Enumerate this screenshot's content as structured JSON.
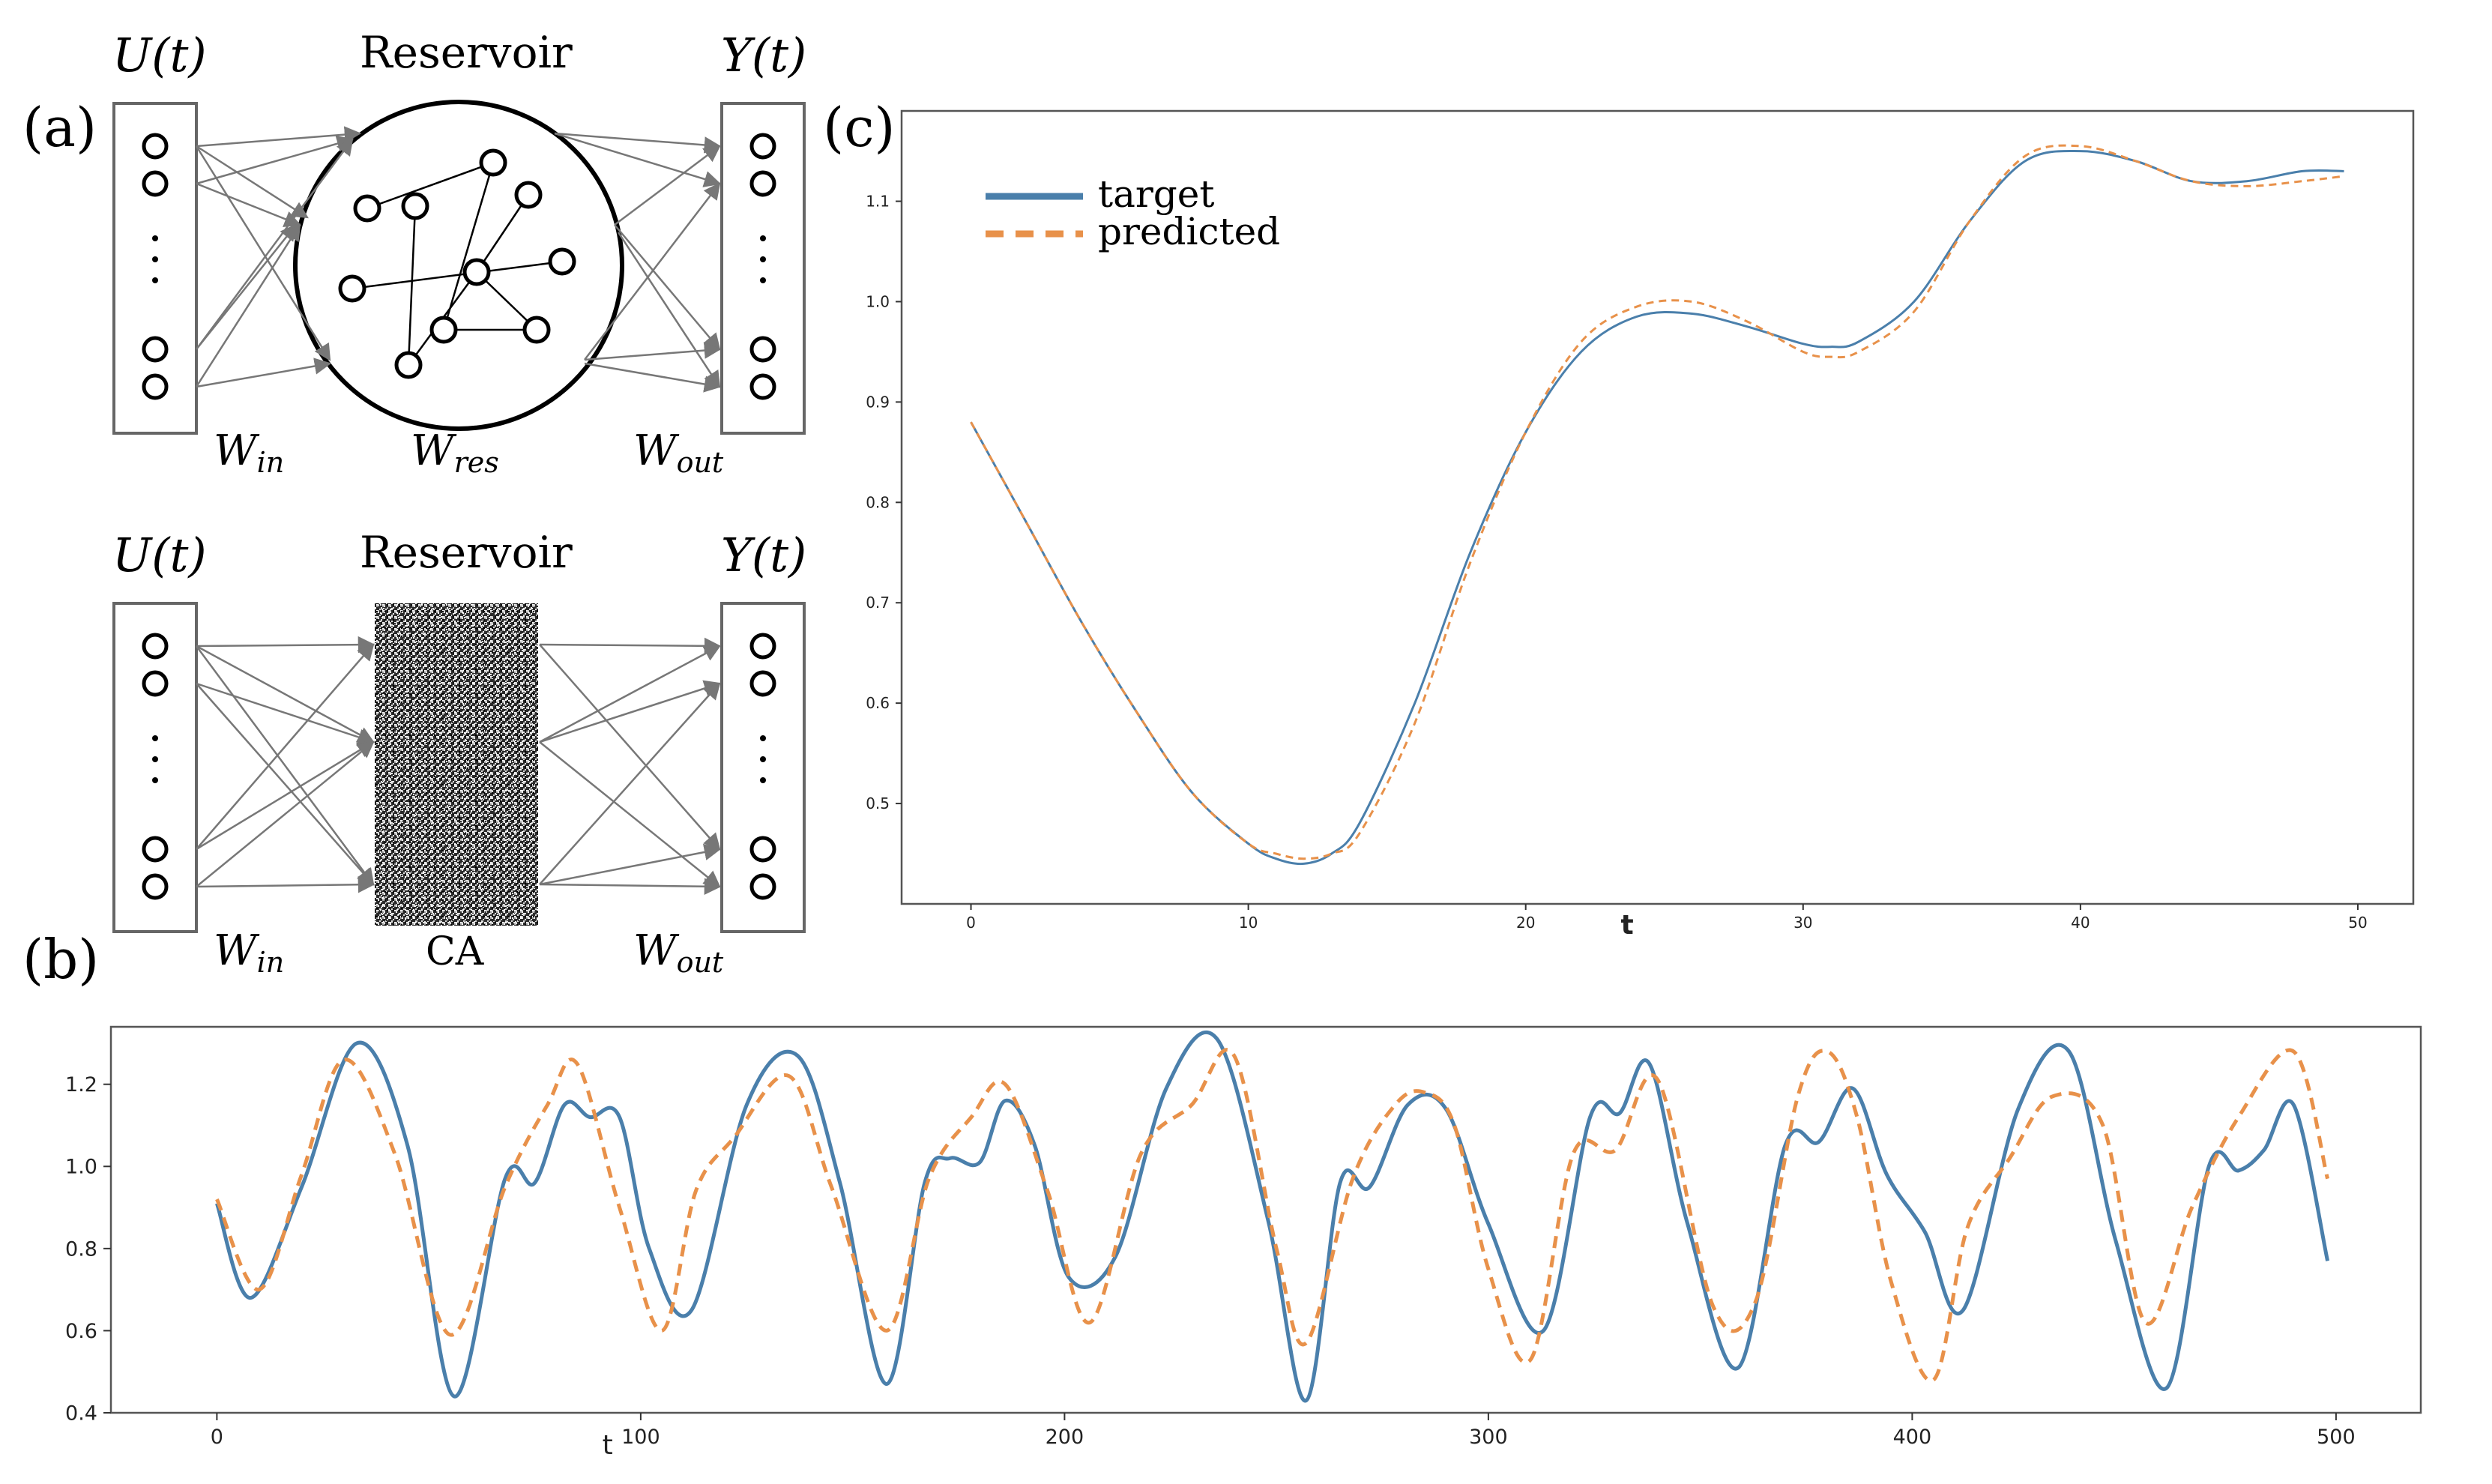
{
  "figure": {
    "panel_a": {
      "label": "(a)",
      "input_label": "U(t)",
      "reservoir_label": "Reservoir",
      "output_label": "Y(t)",
      "w_in": "W",
      "w_in_sub": "in",
      "w_res": "W",
      "w_res_sub": "res",
      "w_out": "W",
      "w_out_sub": "out"
    },
    "panel_a2": {
      "input_label": "U(t)",
      "reservoir_label": "Reservoir",
      "output_label": "Y(t)",
      "w_in": "W",
      "w_in_sub": "in",
      "ca_label": "CA",
      "w_out": "W",
      "w_out_sub": "out"
    },
    "panel_b_label": "(b)",
    "panel_c_label": "(c)"
  },
  "chart_data": [
    {
      "type": "line",
      "panel": "c",
      "xlabel": "t",
      "xlim": [
        -2.5,
        52
      ],
      "ylim": [
        0.4,
        1.19
      ],
      "xticks": [
        "0",
        "10",
        "20",
        "30",
        "40",
        "50"
      ],
      "yticks": [
        "0.5",
        "0.6",
        "0.7",
        "0.8",
        "0.9",
        "1.0",
        "1.1"
      ],
      "legend_position": "top-left",
      "series": [
        {
          "name": "target",
          "color": "#4a7fab",
          "style": "solid",
          "x": [
            0,
            2,
            4,
            6,
            8,
            10,
            11,
            12,
            13,
            14,
            16,
            18,
            20,
            22,
            24,
            26,
            28,
            30,
            31,
            32,
            34,
            36,
            38,
            40,
            42,
            44,
            46,
            48,
            49.5
          ],
          "y": [
            0.88,
            0.78,
            0.68,
            0.59,
            0.51,
            0.46,
            0.445,
            0.44,
            0.45,
            0.48,
            0.6,
            0.75,
            0.87,
            0.95,
            0.985,
            0.988,
            0.975,
            0.958,
            0.955,
            0.96,
            1.0,
            1.08,
            1.14,
            1.15,
            1.14,
            1.12,
            1.12,
            1.13,
            1.13
          ]
        },
        {
          "name": "predicted",
          "color": "#e8914a",
          "style": "dashed",
          "x": [
            0,
            2,
            4,
            6,
            8,
            10,
            11,
            12,
            13,
            14,
            16,
            18,
            20,
            22,
            24,
            26,
            28,
            30,
            31,
            32,
            34,
            36,
            38,
            40,
            42,
            44,
            46,
            48,
            49.5
          ],
          "y": [
            0.88,
            0.78,
            0.68,
            0.59,
            0.51,
            0.46,
            0.45,
            0.445,
            0.45,
            0.47,
            0.58,
            0.74,
            0.87,
            0.96,
            0.995,
            1.0,
            0.98,
            0.95,
            0.945,
            0.95,
            0.99,
            1.08,
            1.145,
            1.155,
            1.14,
            1.12,
            1.115,
            1.12,
            1.125
          ]
        }
      ]
    },
    {
      "type": "line",
      "panel": "b",
      "xlabel": "t",
      "xlim": [
        -25,
        520
      ],
      "ylim": [
        0.4,
        1.34
      ],
      "xticks": [
        "0",
        "100",
        "200",
        "300",
        "400",
        "500"
      ],
      "yticks": [
        "0.4",
        "0.6",
        "0.8",
        "1.0",
        "1.2"
      ],
      "series": [
        {
          "name": "target",
          "color": "#4a7fab",
          "style": "solid",
          "x": [
            0,
            8,
            20,
            33,
            45,
            56,
            68,
            75,
            82,
            88,
            95,
            102,
            112,
            125,
            137,
            147,
            158,
            167,
            173,
            180,
            186,
            193,
            201,
            212,
            224,
            236,
            248,
            257,
            265,
            272,
            281,
            290,
            300,
            313,
            324,
            331,
            338,
            347,
            359,
            370,
            378,
            386,
            394,
            403,
            412,
            425,
            437,
            448,
            460,
            470,
            477,
            483,
            490,
            498
          ],
          "y": [
            0.91,
            0.68,
            0.95,
            1.3,
            1.05,
            0.44,
            0.97,
            0.96,
            1.15,
            1.12,
            1.12,
            0.8,
            0.65,
            1.15,
            1.27,
            0.96,
            0.47,
            0.96,
            1.02,
            1.01,
            1.16,
            1.05,
            0.73,
            0.78,
            1.19,
            1.31,
            0.87,
            0.43,
            0.96,
            0.95,
            1.15,
            1.14,
            0.86,
            0.6,
            1.12,
            1.13,
            1.25,
            0.86,
            0.51,
            1.05,
            1.06,
            1.19,
            0.98,
            0.84,
            0.65,
            1.14,
            1.28,
            0.82,
            0.46,
            1.0,
            0.99,
            1.04,
            1.15,
            0.77
          ]
        },
        {
          "name": "predicted",
          "color": "#e8914a",
          "style": "dashed",
          "x": [
            0,
            10,
            20,
            30,
            42,
            55,
            68,
            78,
            85,
            95,
            105,
            113,
            122,
            135,
            145,
            158,
            168,
            178,
            186,
            196,
            206,
            218,
            230,
            240,
            250,
            257,
            268,
            278,
            285,
            292,
            300,
            310,
            320,
            330,
            340,
            353,
            363,
            373,
            380,
            387,
            395,
            405,
            413,
            423,
            433,
            445,
            455,
            466,
            477,
            490,
            498
          ],
          "y": [
            0.92,
            0.7,
            0.98,
            1.26,
            1.03,
            0.59,
            0.95,
            1.15,
            1.25,
            0.9,
            0.6,
            0.94,
            1.07,
            1.22,
            0.95,
            0.6,
            0.97,
            1.12,
            1.2,
            0.94,
            0.62,
            1.03,
            1.15,
            1.27,
            0.8,
            0.57,
            0.97,
            1.15,
            1.18,
            1.1,
            0.75,
            0.53,
            1.03,
            1.04,
            1.21,
            0.66,
            0.67,
            1.17,
            1.28,
            1.12,
            0.72,
            0.48,
            0.85,
            1.02,
            1.17,
            1.1,
            0.62,
            0.9,
            1.12,
            1.28,
            0.97
          ]
        }
      ]
    }
  ]
}
